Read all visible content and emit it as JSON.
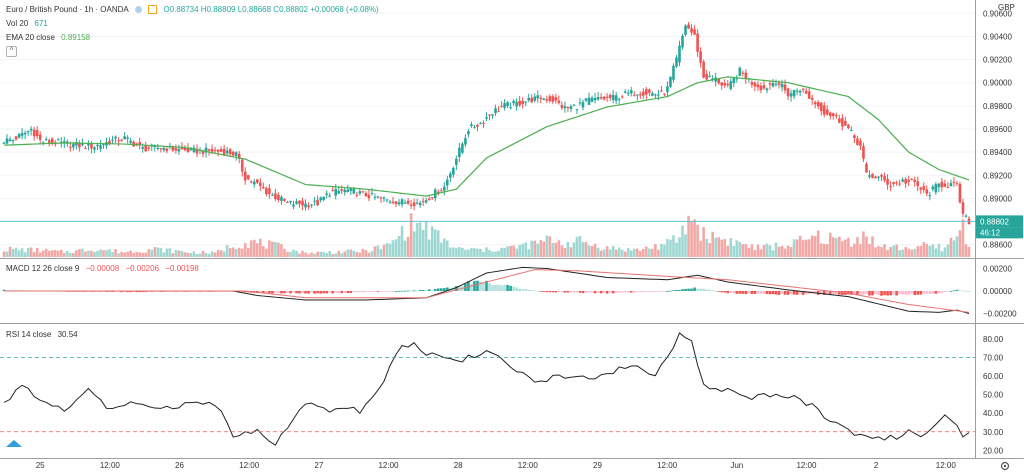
{
  "header": {
    "symbol": "Euro / British Pound · 1h · OANDA",
    "ohlc": "O0.88734  H0.88809  L0.88668  C0.88802  +0.00068 (+0.08%)",
    "vol_label": "Vol 20",
    "vol_value": "671",
    "ema_label": "EMA 20 close",
    "ema_value": "0.89158",
    "collapse_symbol": "^",
    "currency": "GBP"
  },
  "macd_legend": {
    "label": "MACD 12 26 close 9",
    "v1": "−0.00008",
    "v2": "−0.00206",
    "v3": "−0.00198"
  },
  "rsi_legend": {
    "label": "RSI 14 close",
    "value": "30.54"
  },
  "price_badges": {
    "last": "0.88802",
    "countdown": "46:12"
  },
  "colors": {
    "up": "#26a69a",
    "down": "#ef5350",
    "ema": "#4caf50",
    "macd": "#222222",
    "signal": "#e57373",
    "last_line": "#5fc4d6",
    "rsi": "#222222"
  },
  "chart_data": [
    {
      "type": "candlestick",
      "panel": "price",
      "ylim": [
        0.8852,
        0.9068
      ],
      "ticks": [
        "0.90600",
        "0.90400",
        "0.90200",
        "0.90000",
        "0.89800",
        "0.89600",
        "0.89400",
        "0.89200",
        "0.89000",
        "0.88800",
        "0.88600"
      ],
      "tick_values": [
        0.906,
        0.904,
        0.902,
        0.9,
        0.898,
        0.896,
        0.894,
        0.892,
        0.89,
        0.888,
        0.886
      ],
      "x_labels": [
        "25",
        "12:00",
        "26",
        "12:00",
        "27",
        "12:00",
        "28",
        "12:00",
        "29",
        "12:00",
        "Jun",
        "12:00",
        "2",
        "12:00"
      ],
      "close_path": [
        [
          0,
          0.895
        ],
        [
          3,
          0.8951
        ],
        [
          6,
          0.8955
        ],
        [
          9,
          0.896
        ],
        [
          12,
          0.895
        ],
        [
          18,
          0.8948
        ],
        [
          24,
          0.8946
        ],
        [
          30,
          0.8945
        ],
        [
          36,
          0.895
        ],
        [
          40,
          0.8952
        ],
        [
          46,
          0.8943
        ],
        [
          52,
          0.8944
        ],
        [
          58,
          0.8942
        ],
        [
          64,
          0.8941
        ],
        [
          70,
          0.8941
        ],
        [
          74,
          0.894
        ],
        [
          77,
          0.8938
        ],
        [
          80,
          0.8918
        ],
        [
          84,
          0.8912
        ],
        [
          88,
          0.8904
        ],
        [
          94,
          0.8896
        ],
        [
          100,
          0.8895
        ],
        [
          104,
          0.8896
        ],
        [
          108,
          0.8905
        ],
        [
          114,
          0.8907
        ],
        [
          120,
          0.8903
        ],
        [
          126,
          0.8899
        ],
        [
          132,
          0.8897
        ],
        [
          138,
          0.8896
        ],
        [
          142,
          0.8903
        ],
        [
          146,
          0.891
        ],
        [
          150,
          0.8935
        ],
        [
          154,
          0.896
        ],
        [
          158,
          0.8965
        ],
        [
          162,
          0.8975
        ],
        [
          166,
          0.898
        ],
        [
          170,
          0.8982
        ],
        [
          174,
          0.8985
        ],
        [
          178,
          0.8987
        ],
        [
          182,
          0.8985
        ],
        [
          186,
          0.8978
        ],
        [
          190,
          0.898
        ],
        [
          194,
          0.8985
        ],
        [
          198,
          0.8986
        ],
        [
          202,
          0.8987
        ],
        [
          206,
          0.899
        ],
        [
          210,
          0.8992
        ],
        [
          214,
          0.8991
        ],
        [
          218,
          0.899
        ],
        [
          220,
          0.8995
        ],
        [
          223,
          0.902
        ],
        [
          226,
          0.905
        ],
        [
          229,
          0.904
        ],
        [
          232,
          0.9005
        ],
        [
          236,
          0.9003
        ],
        [
          240,
          0.8995
        ],
        [
          244,
          0.901
        ],
        [
          248,
          0.9
        ],
        [
          252,
          0.8995
        ],
        [
          256,
          0.9002
        ],
        [
          260,
          0.899
        ],
        [
          264,
          0.8995
        ],
        [
          268,
          0.8985
        ],
        [
          272,
          0.8975
        ],
        [
          276,
          0.897
        ],
        [
          280,
          0.896
        ],
        [
          284,
          0.8945
        ],
        [
          286,
          0.892
        ],
        [
          290,
          0.8918
        ],
        [
          294,
          0.8912
        ],
        [
          298,
          0.8915
        ],
        [
          302,
          0.8913
        ],
        [
          306,
          0.8903
        ],
        [
          310,
          0.8912
        ],
        [
          314,
          0.8912
        ],
        [
          316,
          0.891
        ],
        [
          318,
          0.8885
        ],
        [
          320,
          0.888
        ]
      ],
      "ema_path": [
        [
          0,
          0.8946
        ],
        [
          20,
          0.8948
        ],
        [
          40,
          0.8947
        ],
        [
          60,
          0.8944
        ],
        [
          80,
          0.8934
        ],
        [
          100,
          0.8912
        ],
        [
          120,
          0.8908
        ],
        [
          140,
          0.8902
        ],
        [
          150,
          0.8908
        ],
        [
          160,
          0.8935
        ],
        [
          180,
          0.8962
        ],
        [
          200,
          0.8979
        ],
        [
          220,
          0.8988
        ],
        [
          230,
          0.9
        ],
        [
          240,
          0.9005
        ],
        [
          260,
          0.9
        ],
        [
          280,
          0.8988
        ],
        [
          290,
          0.8968
        ],
        [
          300,
          0.894
        ],
        [
          310,
          0.8925
        ],
        [
          320,
          0.8916
        ]
      ],
      "volume_path": [
        [
          0,
          0.8
        ],
        [
          10,
          0.7
        ],
        [
          20,
          0.5
        ],
        [
          30,
          0.8
        ],
        [
          40,
          0.5
        ],
        [
          50,
          0.8
        ],
        [
          60,
          0.5
        ],
        [
          70,
          0.4
        ],
        [
          76,
          1.2
        ],
        [
          82,
          1.5
        ],
        [
          90,
          1.1
        ],
        [
          100,
          0.4
        ],
        [
          110,
          0.5
        ],
        [
          120,
          0.6
        ],
        [
          128,
          1.2
        ],
        [
          132,
          2.5
        ],
        [
          136,
          3.4
        ],
        [
          140,
          2.8
        ],
        [
          146,
          1.6
        ],
        [
          150,
          0.8
        ],
        [
          160,
          0.7
        ],
        [
          170,
          1.0
        ],
        [
          176,
          1.3
        ],
        [
          182,
          1.8
        ],
        [
          186,
          1.3
        ],
        [
          190,
          1.6
        ],
        [
          200,
          0.9
        ],
        [
          210,
          0.7
        ],
        [
          220,
          1.3
        ],
        [
          224,
          2.0
        ],
        [
          228,
          4.1
        ],
        [
          232,
          2.2
        ],
        [
          236,
          2.0
        ],
        [
          242,
          1.5
        ],
        [
          250,
          0.9
        ],
        [
          260,
          1.2
        ],
        [
          270,
          2.0
        ],
        [
          280,
          1.6
        ],
        [
          286,
          2.2
        ],
        [
          290,
          1.0
        ],
        [
          300,
          0.9
        ],
        [
          306,
          1.1
        ],
        [
          312,
          0.9
        ],
        [
          316,
          2.2
        ],
        [
          318,
          3.0
        ],
        [
          320,
          1.0
        ]
      ],
      "last_value": 0.88802
    },
    {
      "type": "macd",
      "panel": "macd",
      "ylim": [
        -0.0024,
        0.0024
      ],
      "ticks": [
        "0.00200",
        "0.00000",
        "−0.00200"
      ],
      "tick_values": [
        0.002,
        0,
        -0.002
      ],
      "macd_path": [
        [
          0,
          0.0
        ],
        [
          40,
          0.0
        ],
        [
          76,
          0.0
        ],
        [
          84,
          -0.0004
        ],
        [
          100,
          -0.0008
        ],
        [
          120,
          -0.0008
        ],
        [
          140,
          -0.0006
        ],
        [
          150,
          0.0003
        ],
        [
          160,
          0.0016
        ],
        [
          172,
          0.0021
        ],
        [
          180,
          0.002
        ],
        [
          200,
          0.0012
        ],
        [
          220,
          0.001
        ],
        [
          230,
          0.0014
        ],
        [
          240,
          0.0008
        ],
        [
          260,
          0.0001
        ],
        [
          280,
          -0.0005
        ],
        [
          300,
          -0.0018
        ],
        [
          310,
          -0.0019
        ],
        [
          316,
          -0.0017
        ],
        [
          320,
          -0.002
        ]
      ],
      "signal_path": [
        [
          0,
          0.0
        ],
        [
          80,
          0.0
        ],
        [
          100,
          -0.0006
        ],
        [
          140,
          -0.0006
        ],
        [
          160,
          0.0008
        ],
        [
          176,
          0.0019
        ],
        [
          190,
          0.0018
        ],
        [
          220,
          0.0013
        ],
        [
          240,
          0.001
        ],
        [
          260,
          0.0004
        ],
        [
          280,
          -0.0002
        ],
        [
          300,
          -0.0012
        ],
        [
          320,
          -0.0019
        ]
      ],
      "hist_path": [
        [
          0,
          0.0001
        ],
        [
          40,
          -0.0001
        ],
        [
          76,
          0.0
        ],
        [
          84,
          -0.0002
        ],
        [
          110,
          -0.0002
        ],
        [
          140,
          0.0001
        ],
        [
          150,
          0.0004
        ],
        [
          156,
          0.0009
        ],
        [
          160,
          0.0008
        ],
        [
          170,
          0.0003
        ],
        [
          180,
          -0.0001
        ],
        [
          200,
          -0.0002
        ],
        [
          220,
          0.0
        ],
        [
          230,
          0.0003
        ],
        [
          240,
          -0.0002
        ],
        [
          260,
          -0.0003
        ],
        [
          280,
          -0.0003
        ],
        [
          296,
          -0.0004
        ],
        [
          310,
          -0.0002
        ],
        [
          316,
          0.0001
        ],
        [
          320,
          0.0
        ]
      ]
    },
    {
      "type": "rsi",
      "panel": "rsi",
      "ylim": [
        18,
        86
      ],
      "ticks": [
        "80.00",
        "70.00",
        "60.00",
        "50.00",
        "40.00",
        "30.00",
        "20.00"
      ],
      "tick_values": [
        80,
        70,
        60,
        50,
        40,
        30,
        20
      ],
      "bands": [
        70,
        30
      ],
      "rsi_path": [
        [
          0,
          45
        ],
        [
          6,
          55
        ],
        [
          12,
          46
        ],
        [
          20,
          42
        ],
        [
          28,
          54
        ],
        [
          34,
          42
        ],
        [
          42,
          45
        ],
        [
          50,
          42
        ],
        [
          58,
          44
        ],
        [
          66,
          46
        ],
        [
          72,
          42
        ],
        [
          76,
          28
        ],
        [
          84,
          30
        ],
        [
          90,
          24
        ],
        [
          100,
          46
        ],
        [
          108,
          40
        ],
        [
          114,
          44
        ],
        [
          118,
          41
        ],
        [
          124,
          52
        ],
        [
          128,
          65
        ],
        [
          132,
          76
        ],
        [
          136,
          78
        ],
        [
          140,
          72
        ],
        [
          150,
          68
        ],
        [
          160,
          73
        ],
        [
          168,
          66
        ],
        [
          176,
          56
        ],
        [
          184,
          60
        ],
        [
          190,
          60
        ],
        [
          196,
          58
        ],
        [
          204,
          64
        ],
        [
          210,
          65
        ],
        [
          216,
          60
        ],
        [
          220,
          70
        ],
        [
          224,
          82
        ],
        [
          228,
          78
        ],
        [
          232,
          55
        ],
        [
          240,
          52
        ],
        [
          248,
          48
        ],
        [
          252,
          50
        ],
        [
          256,
          49
        ],
        [
          262,
          49
        ],
        [
          268,
          44
        ],
        [
          272,
          38
        ],
        [
          280,
          30
        ],
        [
          284,
          28
        ],
        [
          290,
          26
        ],
        [
          296,
          27
        ],
        [
          300,
          30
        ],
        [
          306,
          28
        ],
        [
          312,
          38
        ],
        [
          316,
          32
        ],
        [
          318,
          26
        ],
        [
          320,
          30
        ]
      ],
      "last_value": 30.54
    }
  ]
}
